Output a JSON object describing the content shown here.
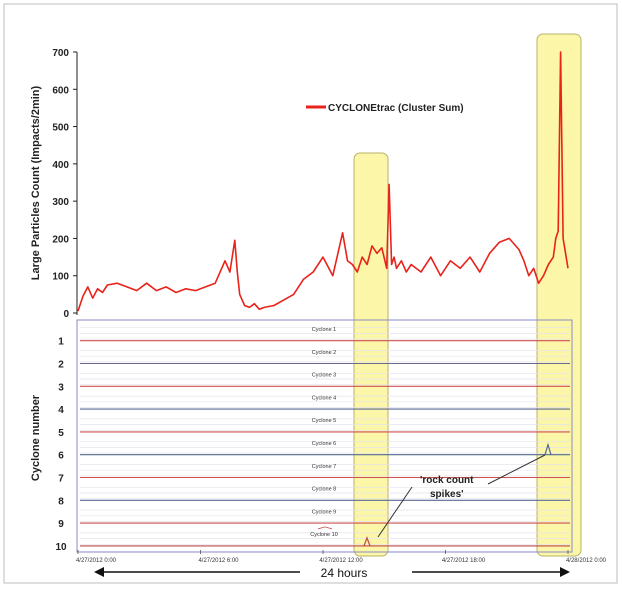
{
  "chart_data": [
    {
      "type": "line",
      "ylabel": "Large Particles Count  (Impacts/2min)",
      "ylim": [
        0,
        700
      ],
      "yticks": [
        0,
        100,
        200,
        300,
        400,
        500,
        600,
        700
      ],
      "grid": false,
      "legend_position": "top-right",
      "series": [
        {
          "name": "CYCLONEtrac (Cluster Sum)",
          "color": "#e8231b",
          "x_fraction": [
            0.0,
            0.01,
            0.02,
            0.03,
            0.04,
            0.05,
            0.06,
            0.08,
            0.1,
            0.12,
            0.14,
            0.16,
            0.18,
            0.2,
            0.22,
            0.24,
            0.26,
            0.28,
            0.3,
            0.31,
            0.32,
            0.325,
            0.33,
            0.34,
            0.35,
            0.36,
            0.37,
            0.38,
            0.4,
            0.42,
            0.44,
            0.46,
            0.48,
            0.5,
            0.52,
            0.54,
            0.55,
            0.56,
            0.57,
            0.58,
            0.59,
            0.6,
            0.61,
            0.62,
            0.63,
            0.635,
            0.64,
            0.645,
            0.65,
            0.66,
            0.67,
            0.68,
            0.69,
            0.7,
            0.72,
            0.74,
            0.76,
            0.78,
            0.8,
            0.82,
            0.84,
            0.86,
            0.88,
            0.9,
            0.91,
            0.92,
            0.93,
            0.94,
            0.95,
            0.96,
            0.97,
            0.975,
            0.98,
            0.985,
            0.99,
            1.0
          ],
          "values": [
            5,
            45,
            70,
            40,
            65,
            55,
            75,
            80,
            70,
            60,
            80,
            60,
            70,
            55,
            65,
            60,
            70,
            80,
            140,
            110,
            195,
            110,
            50,
            20,
            15,
            25,
            10,
            15,
            20,
            35,
            50,
            90,
            110,
            150,
            100,
            215,
            140,
            130,
            110,
            150,
            130,
            180,
            160,
            175,
            120,
            345,
            130,
            150,
            120,
            140,
            110,
            130,
            120,
            110,
            150,
            100,
            140,
            120,
            150,
            110,
            160,
            190,
            200,
            170,
            140,
            100,
            120,
            80,
            100,
            130,
            150,
            200,
            220,
            700,
            200,
            120
          ]
        }
      ]
    },
    {
      "type": "line",
      "ylabel": "Cyclone number",
      "categories": [
        "1",
        "2",
        "3",
        "4",
        "5",
        "6",
        "7",
        "8",
        "9",
        "10"
      ],
      "row_titles": [
        "Cyclone 1",
        "Cyclone 2",
        "Cyclone 3",
        "Cyclone 4",
        "Cyclone 5",
        "Cyclone 6",
        "Cyclone 7",
        "Cyclone 8",
        "Cyclone 9",
        "Cyclone 10"
      ],
      "row_colors": [
        "#d05050",
        "#6a6a8c",
        "#d05050",
        "#5a6a96",
        "#d05050",
        "#506a8a",
        "#d05050",
        "#5a6a96",
        "#d05050",
        "#c04848"
      ],
      "x_tick_labels": [
        "4/27/2012 0:00",
        "4/27/2012 6:00",
        "4/27/2012 12:00",
        "4/27/2012 18:00",
        "4/28/2012 0:00"
      ],
      "annotation": "'rock count spikes'",
      "bottom_label": "24 hours"
    }
  ]
}
